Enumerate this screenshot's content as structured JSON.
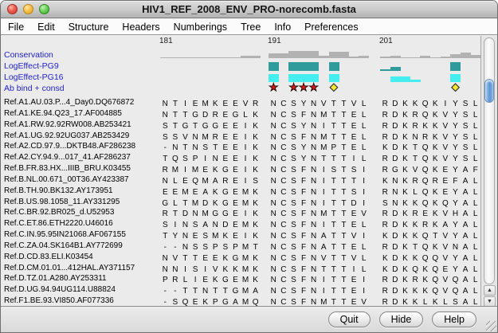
{
  "window": {
    "title": "HIV1_REF_2008_ENV_PRO-norecomb.fasta"
  },
  "menu_bar": {
    "items": [
      "File",
      "Edit",
      "Structure",
      "Headers",
      "Numberings",
      "Tree",
      "Info",
      "Preferences"
    ]
  },
  "footer": {
    "buttons": [
      "Quit",
      "Hide",
      "Help"
    ]
  },
  "icons": {
    "star": "★",
    "diamond": "◆",
    "scroll_up": "▲",
    "scroll_down": "▼"
  },
  "colors": {
    "track_label": "#2222cc",
    "conservation_bar": "#b2b2b2",
    "pg9_bar": "#2f9b9b",
    "pg16_bar": "#45eeee",
    "star": "#da1a1a",
    "diamond": "#f6e432"
  },
  "chart_data": {
    "type": "annotated-sequence-alignment",
    "position_ticks": [
      "181",
      "191",
      "201"
    ],
    "track_labels": [
      "Conservation",
      "LogEffect-PG9",
      "LogEffect-PG16",
      "Ab bind + consd"
    ],
    "conservation_heights": [
      [
        1,
        1,
        1,
        1,
        1,
        1,
        1,
        1,
        3,
        3
      ],
      [
        6,
        6,
        9,
        9,
        9,
        3,
        8,
        8,
        2,
        3
      ],
      [
        2,
        3,
        1,
        1,
        3,
        1,
        2,
        5,
        7,
        4
      ]
    ],
    "pg9_heights": [
      [
        0,
        0,
        0,
        0,
        0,
        0,
        0,
        0,
        0,
        0
      ],
      [
        11,
        0,
        11,
        11,
        11,
        0,
        11,
        0,
        0,
        0
      ],
      [
        2,
        5,
        0,
        0,
        0,
        0,
        0,
        11,
        0,
        0
      ]
    ],
    "pg16_heights": [
      [
        0,
        0,
        0,
        0,
        0,
        0,
        0,
        0,
        0,
        0
      ],
      [
        10,
        0,
        10,
        10,
        10,
        0,
        10,
        0,
        0,
        0
      ],
      [
        0,
        7,
        7,
        3,
        0,
        0,
        0,
        10,
        0,
        0
      ]
    ],
    "markers": [
      [
        "",
        "",
        "",
        "",
        "",
        "",
        "",
        "",
        "",
        ""
      ],
      [
        "star",
        "",
        "star",
        "star",
        "star",
        "",
        "diamond",
        "",
        "",
        ""
      ],
      [
        "",
        "",
        "",
        "",
        "",
        "",
        "",
        "diamond",
        "",
        ""
      ]
    ]
  },
  "alignment": {
    "rows": [
      {
        "name": "Ref.A1.AU.03.P...4_Day0.DQ676872",
        "blocks": [
          "NTIEMKEEVR",
          "NCSYNVTTVL",
          "RDKKQKIYSL"
        ]
      },
      {
        "name": "Ref.A1.KE.94.Q23_17.AF004885",
        "blocks": [
          "NTTGDREGLK",
          "NCSFNMTTEL",
          "RDKRQKVYSL"
        ]
      },
      {
        "name": "Ref.A1.RW.92.92RW008.AB253421",
        "blocks": [
          "STGTGGEEIK",
          "NCSYNITTEL",
          "RDKRKKVYSL"
        ]
      },
      {
        "name": "Ref.A1.UG.92.92UG037.AB253429",
        "blocks": [
          "SSVNMREEIK",
          "NCSFNMTTEL",
          "RDKNRKVYSL"
        ]
      },
      {
        "name": "Ref.A2.CD.97.9...DKTB48.AF286238",
        "blocks": [
          "-NTNSTEEIK",
          "NCSYNMPTEL",
          "KDKTQKVYSL"
        ]
      },
      {
        "name": "Ref.A2.CY.94.9...017_41.AF286237",
        "blocks": [
          "TQSPINEEIK",
          "NCSYNTTTIL",
          "RDKTQKVYSL"
        ]
      },
      {
        "name": "Ref.B.FR.83.HX...IIIB_BRU.K03455",
        "blocks": [
          "RMIMEKGEIK",
          "NCSFNISTSI",
          "RGKVQKEYAF"
        ]
      },
      {
        "name": "Ref.B.NL.00.671_00T36.AY423387",
        "blocks": [
          "NLEQMAREIS",
          "NCSFNITTTI",
          "KNKRQREFAL"
        ]
      },
      {
        "name": "Ref.B.TH.90.BK132.AY173951",
        "blocks": [
          "EEMEAKGEMK",
          "NCSFNITTSI",
          "RNKLQKEYAL"
        ]
      },
      {
        "name": "Ref.B.US.98.1058_11.AY331295",
        "blocks": [
          "GLTMDKGEMK",
          "NCSFNITTDI",
          "SNKKQKQYAL"
        ]
      },
      {
        "name": "Ref.C.BR.92.BR025_d.U52953",
        "blocks": [
          "RTDNMGGEIK",
          "NCSFNMTTEV",
          "RDKREKVHAL"
        ]
      },
      {
        "name": "Ref.C.ET.86.ETH2220.U46016",
        "blocks": [
          "SINSANDEMK",
          "NCSFNITTEL",
          "RDKKRKAYAL"
        ]
      },
      {
        "name": "Ref.C.IN.95.95IN21068.AF067155",
        "blocks": [
          "TYNESMKEIK",
          "NCSFNATTVI",
          "KDKKQTVYAL"
        ]
      },
      {
        "name": "Ref.C.ZA.04.SK164B1.AY772699",
        "blocks": [
          "--NSSPSPMT",
          "NCSFNATTEL",
          "RDKTQKVNAL"
        ]
      },
      {
        "name": "Ref.D.CD.83.ELI.K03454",
        "blocks": [
          "NVTTEEKGMK",
          "NCSFNVTTVL",
          "KDKKQQVYAL"
        ]
      },
      {
        "name": "Ref.D.CM.01.01...412HAL.AY371157",
        "blocks": [
          "NNISIVKKMK",
          "NCSFNTTTIL",
          "KDKQKQEYAL"
        ]
      },
      {
        "name": "Ref.D.TZ.01.A280.AY253311",
        "blocks": [
          "PRLIEKGEMK",
          "NCSFNITTEI",
          "RDKRKQVQAL"
        ]
      },
      {
        "name": "Ref.D.UG.94.94UG114.U88824",
        "blocks": [
          "--TTNTTGMA",
          "NCSFNITTEI",
          "RDKKKQVQAL"
        ]
      },
      {
        "name": "Ref.F1.BE.93.VI850.AF077336",
        "blocks": [
          "-SQEKPGAMQ",
          "NCSFNMTTEV",
          "RDKKLKLSAL"
        ]
      }
    ]
  }
}
